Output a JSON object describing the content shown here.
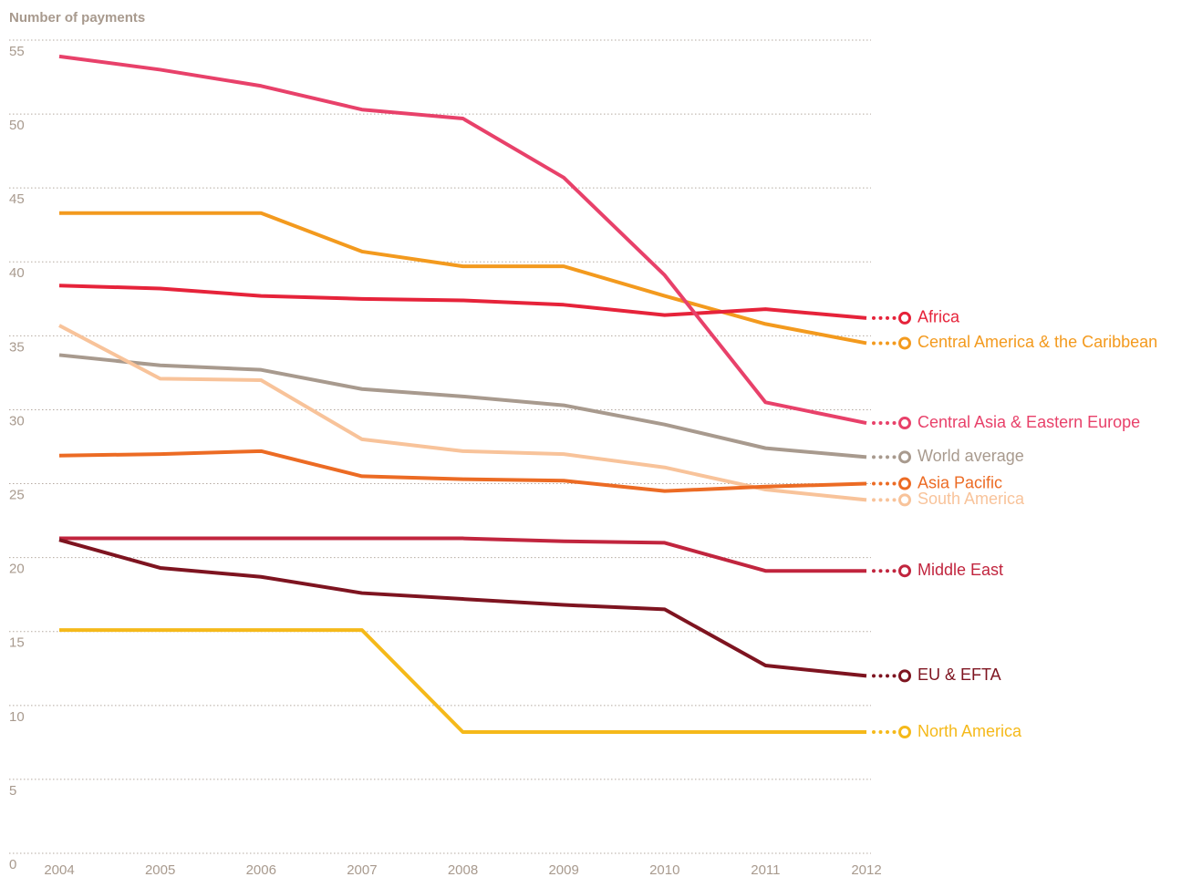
{
  "chart_data": {
    "type": "line",
    "y_label": "Number of payments",
    "x": [
      "2004",
      "2005",
      "2006",
      "2007",
      "2008",
      "2009",
      "2010",
      "2011",
      "2012"
    ],
    "ylim": [
      0,
      55
    ],
    "yticks": [
      0,
      5,
      10,
      15,
      20,
      25,
      30,
      35,
      40,
      45,
      50,
      55
    ],
    "grid": true,
    "series": [
      {
        "name": "Central America & the Caribbean",
        "color": "#f39a1e",
        "values": [
          43.3,
          43.3,
          43.3,
          40.7,
          39.7,
          39.7,
          37.7,
          35.8,
          34.5
        ]
      },
      {
        "name": "Africa",
        "color": "#e6233a",
        "values": [
          38.4,
          38.2,
          37.7,
          37.5,
          37.4,
          37.1,
          36.4,
          36.8,
          36.2
        ]
      },
      {
        "name": "Central Asia & Eastern Europe",
        "color": "#e8416a",
        "values": [
          53.9,
          53.0,
          51.9,
          50.3,
          49.7,
          45.7,
          39.1,
          30.5,
          29.1
        ]
      },
      {
        "name": "World average",
        "color": "#a89a8e",
        "values": [
          33.7,
          33.0,
          32.7,
          31.4,
          30.9,
          30.3,
          29.0,
          27.4,
          26.8
        ]
      },
      {
        "name": "South America",
        "color": "#f8c39a",
        "values": [
          35.7,
          32.1,
          32.0,
          28.0,
          27.2,
          27.0,
          26.1,
          24.6,
          23.9
        ]
      },
      {
        "name": "Asia Pacific",
        "color": "#ec6b24",
        "values": [
          26.9,
          27.0,
          27.2,
          25.5,
          25.3,
          25.2,
          24.5,
          24.8,
          25.0
        ]
      },
      {
        "name": "Middle East",
        "color": "#c1253e",
        "values": [
          21.3,
          21.3,
          21.3,
          21.3,
          21.3,
          21.1,
          21.0,
          19.1,
          19.1
        ]
      },
      {
        "name": "EU & EFTA",
        "color": "#7e1420",
        "values": [
          21.2,
          19.3,
          18.7,
          17.6,
          17.2,
          16.8,
          16.5,
          12.7,
          12.0
        ]
      },
      {
        "name": "North America",
        "color": "#f5b91a",
        "values": [
          15.1,
          15.1,
          15.1,
          15.1,
          8.2,
          8.2,
          8.2,
          8.2,
          8.2
        ]
      }
    ]
  }
}
